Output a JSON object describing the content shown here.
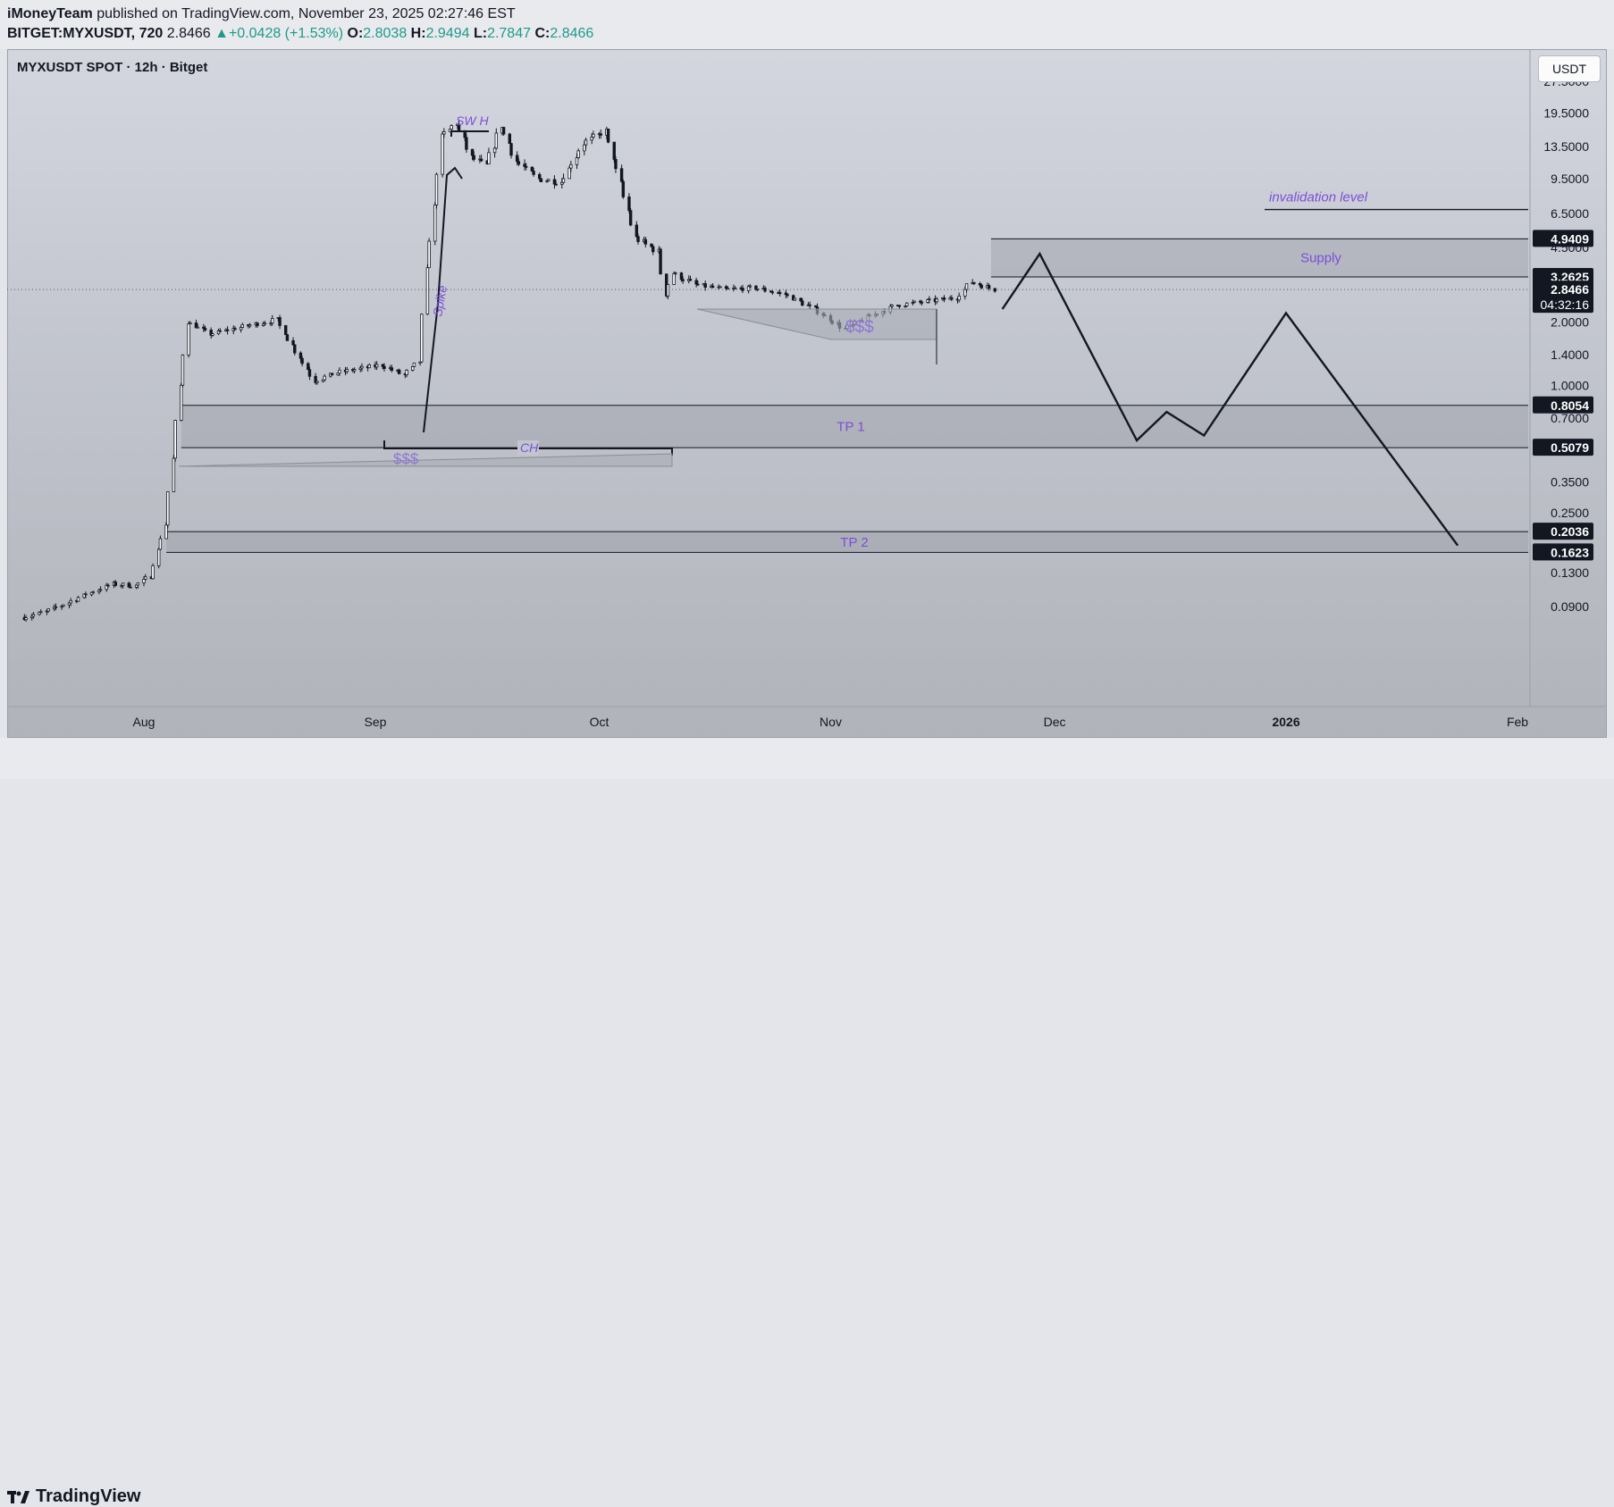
{
  "header": {
    "author": "iMoneyTeam",
    "published_text": "published on TradingView.com, November 23, 2025 02:27:46 EST",
    "symbol": "BITGET:MYXUSDT, 720",
    "last": "2.8466",
    "change": "+0.0428 (+1.53%)",
    "o_label": "O:",
    "o_value": "2.8038",
    "h_label": "H:",
    "h_value": "2.9494",
    "l_label": "L:",
    "l_value": "2.7847",
    "c_label": "C:",
    "c_value": "2.8466",
    "up_arrow": "▲"
  },
  "chart_title": "MYXUSDT SPOT · 12h · Bitget",
  "currency": "USDT",
  "footer": {
    "brand": "TradingView"
  },
  "colors": {
    "up": "#1f9a8a",
    "annotation": "#7b4fd8",
    "zone_fill": "#9b9ea8",
    "projection": "#131722",
    "price_badge": "#131722"
  },
  "chart_data": {
    "type": "candlestick",
    "title": "MYXUSDT SPOT · 12h · Bitget",
    "x_ticks": [
      "Aug",
      "Sep",
      "Oct",
      "Nov",
      "Dec",
      "2026",
      "Feb"
    ],
    "y_scale": "log",
    "y_ticks": [
      "27.5000",
      "19.5000",
      "13.5000",
      "9.5000",
      "6.5000",
      "4.5000",
      "2.0000",
      "1.4000",
      "1.0000",
      "0.7000",
      "0.3500",
      "0.2500",
      "0.1300",
      "0.0900"
    ],
    "price_badges": [
      {
        "label": "4.9409",
        "value": 4.9409
      },
      {
        "label": "3.2625",
        "value": 3.2625
      },
      {
        "label": "2.8466",
        "value": 2.8466,
        "countdown": "04:32:16"
      },
      {
        "label": "0.8054",
        "value": 0.8054
      },
      {
        "label": "0.5079",
        "value": 0.5079
      },
      {
        "label": "0.2036",
        "value": 0.2036
      },
      {
        "label": "0.1623",
        "value": 0.1623
      }
    ],
    "zones": [
      {
        "label": "Supply",
        "top": 4.9409,
        "bottom": 3.2625
      },
      {
        "label": "TP 1",
        "top": 0.8054,
        "bottom": 0.5079
      },
      {
        "label": "TP 2",
        "top": 0.2036,
        "bottom": 0.1623
      }
    ],
    "lines": [
      {
        "label": "invalidation level",
        "value": 6.8
      }
    ],
    "annotations": [
      "SW H",
      "Spike",
      "CH",
      "$$$",
      "$$$"
    ],
    "last_price": 2.8466,
    "price_path": [
      {
        "d": "2025-07-16",
        "p": 0.08
      },
      {
        "d": "2025-07-19",
        "p": 0.085
      },
      {
        "d": "2025-07-22",
        "p": 0.094
      },
      {
        "d": "2025-07-25",
        "p": 0.105
      },
      {
        "d": "2025-07-28",
        "p": 0.115
      },
      {
        "d": "2025-07-31",
        "p": 0.113
      },
      {
        "d": "2025-08-02",
        "p": 0.125
      },
      {
        "d": "2025-08-04",
        "p": 0.22
      },
      {
        "d": "2025-08-05",
        "p": 0.45
      },
      {
        "d": "2025-08-06",
        "p": 1.0
      },
      {
        "d": "2025-08-07",
        "p": 2.0
      },
      {
        "d": "2025-08-10",
        "p": 1.75
      },
      {
        "d": "2025-08-13",
        "p": 1.85
      },
      {
        "d": "2025-08-16",
        "p": 1.95
      },
      {
        "d": "2025-08-19",
        "p": 2.05
      },
      {
        "d": "2025-08-21",
        "p": 1.55
      },
      {
        "d": "2025-08-24",
        "p": 1.05
      },
      {
        "d": "2025-08-27",
        "p": 1.15
      },
      {
        "d": "2025-08-30",
        "p": 1.2
      },
      {
        "d": "2025-09-02",
        "p": 1.25
      },
      {
        "d": "2025-09-05",
        "p": 1.12
      },
      {
        "d": "2025-09-07",
        "p": 1.3
      },
      {
        "d": "2025-09-08",
        "p": 3.5
      },
      {
        "d": "2025-09-09",
        "p": 7.0
      },
      {
        "d": "2025-09-10",
        "p": 15.0
      },
      {
        "d": "2025-09-12",
        "p": 17.5
      },
      {
        "d": "2025-09-14",
        "p": 12.0
      },
      {
        "d": "2025-09-16",
        "p": 11.0
      },
      {
        "d": "2025-09-18",
        "p": 17.0
      },
      {
        "d": "2025-09-20",
        "p": 11.5
      },
      {
        "d": "2025-09-23",
        "p": 9.5
      },
      {
        "d": "2025-09-26",
        "p": 9.2
      },
      {
        "d": "2025-09-29",
        "p": 14.0
      },
      {
        "d": "2025-10-02",
        "p": 16.0
      },
      {
        "d": "2025-10-04",
        "p": 9.0
      },
      {
        "d": "2025-10-06",
        "p": 5.0
      },
      {
        "d": "2025-10-09",
        "p": 4.3
      },
      {
        "d": "2025-10-10",
        "p": 2.7
      },
      {
        "d": "2025-10-11",
        "p": 3.4
      },
      {
        "d": "2025-10-14",
        "p": 3.0
      },
      {
        "d": "2025-10-18",
        "p": 2.85
      },
      {
        "d": "2025-10-22",
        "p": 2.9
      },
      {
        "d": "2025-10-26",
        "p": 2.7
      },
      {
        "d": "2025-10-30",
        "p": 2.3
      },
      {
        "d": "2025-11-03",
        "p": 1.85
      },
      {
        "d": "2025-11-06",
        "p": 2.1
      },
      {
        "d": "2025-11-10",
        "p": 2.4
      },
      {
        "d": "2025-11-14",
        "p": 2.5
      },
      {
        "d": "2025-11-18",
        "p": 2.6
      },
      {
        "d": "2025-11-20",
        "p": 3.1
      },
      {
        "d": "2025-11-23",
        "p": 2.8466
      }
    ],
    "projection": [
      {
        "d": "2025-11-24",
        "p": 2.3
      },
      {
        "d": "2025-11-29",
        "p": 4.2
      },
      {
        "d": "2025-12-12",
        "p": 0.55
      },
      {
        "d": "2025-12-16",
        "p": 0.75
      },
      {
        "d": "2025-12-21",
        "p": 0.58
      },
      {
        "d": "2026-01-01",
        "p": 2.2
      },
      {
        "d": "2026-01-24",
        "p": 0.175
      }
    ]
  }
}
